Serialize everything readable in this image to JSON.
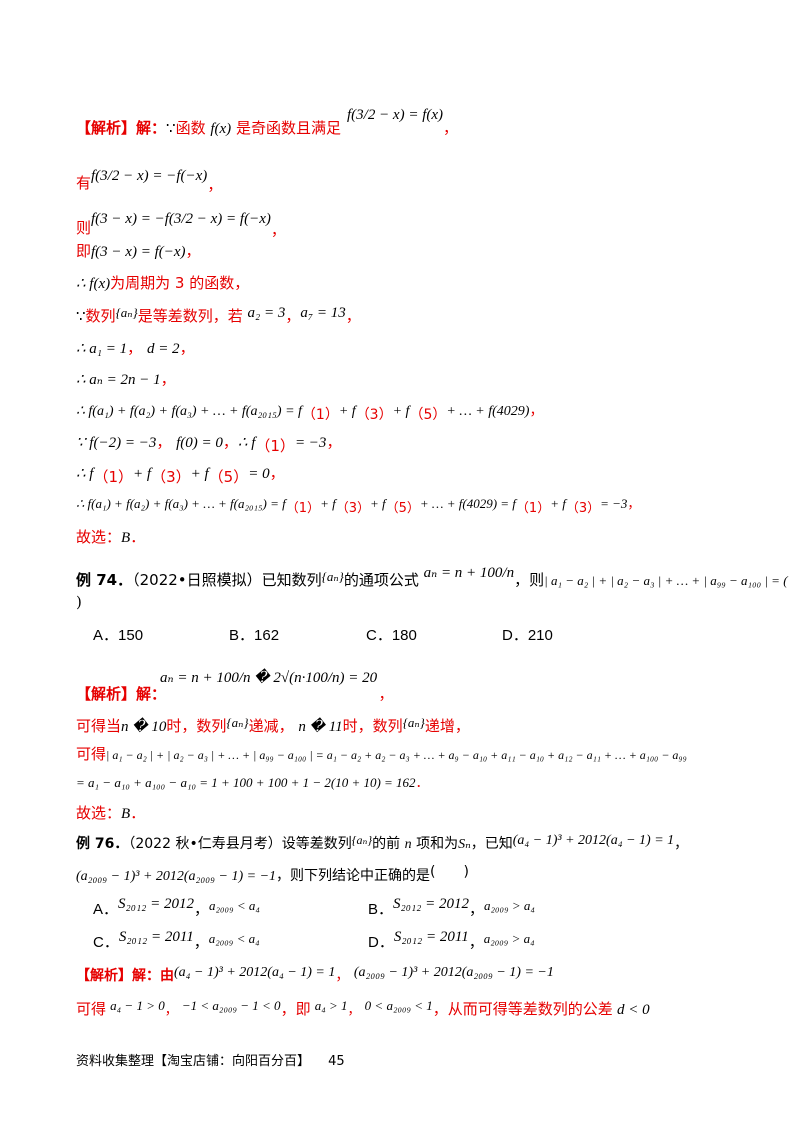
{
  "sol1": {
    "l1_label": "【解析】解：",
    "l1_because": "∵",
    "l1_func": "函数",
    "l1_fx": "f(x)",
    "l1_text": "是奇函数且满足",
    "l1_eq": "f(3/2 − x) = f(x)",
    "l1_end": "，",
    "l2_pre": "有",
    "l2_eq": "f(3/2 − x) = −f(−x)",
    "l2_end": "，",
    "l3_pre": "则",
    "l3_eq": "f(3 − x) = −f(3/2 − x) = f(−x)",
    "l3_end": "，",
    "l4_pre": "即",
    "l4_eq": "f(3 − x) = f(−x)",
    "l4_end": "，",
    "l5_eq": "∴ f(x)",
    "l5_text": "为周期为 3 的函数，",
    "l6_pre": "∵",
    "l6_text": "数列",
    "l6_an": "{aₙ}",
    "l6_text2": "是等差数列，若",
    "l6_eq1": "a₂ = 3",
    "l6_sep": "，",
    "l6_eq2": "a₇ = 13",
    "l6_end": "，",
    "l7_eq1": "∴ a₁ = 1",
    "l7_sep": "，",
    "l7_eq2": "d = 2",
    "l7_end": "，",
    "l8_eq": "∴ aₙ = 2n − 1",
    "l8_end": "，",
    "l9_eq": "∴ f(a₁) + f(a₂) + f(a₃) + … + f(a₂₀₁₅) = f",
    "l9_p1": "（1）",
    "l9_plus1": "+ f",
    "l9_p3": "（3）",
    "l9_plus2": "+ f",
    "l9_p5": "（5）",
    "l9_tail": "+ … + f(4029)",
    "l9_end": "，",
    "l10_eq1": "∵ f(−2) = −3",
    "l10_sep": "，",
    "l10_eq2": "f(0) = 0",
    "l10_sep2": "，",
    "l10_eq3": "∴ f",
    "l10_p1": "（1）",
    "l10_val": "= −3",
    "l10_end": "，",
    "l11_eq": "∴ f",
    "l11_p1": "（1）",
    "l11_plus1": "+ f",
    "l11_p3": "（3）",
    "l11_plus2": "+ f",
    "l11_p5": "（5）",
    "l11_val": "= 0",
    "l11_end": "，",
    "l12_eq": "∴ f(a₁) + f(a₂) + f(a₃) + … + f(a₂₀₁₅) = f",
    "l12_p1": "（1）",
    "l12_plus1": "+ f",
    "l12_p3": "（3）",
    "l12_plus2": "+ f",
    "l12_p5": "（5）",
    "l12_mid": "+ … + f(4029) = f",
    "l12_p1b": "（1）",
    "l12_plus3": "+ f",
    "l12_p3b": "（3）",
    "l12_val": "= −3",
    "l12_end": "，",
    "l13_text": "故选：",
    "l13_ans": "B",
    "l13_end": "．"
  },
  "ex74": {
    "label": "例 74．",
    "source": "（2022•日照模拟）已知数列",
    "an": "{aₙ}",
    "text": "的通项公式",
    "formula": "aₙ = n + 100/n",
    "text2": "，则",
    "expr": "| a₁ − a₂ | + | a₂ − a₃ | + … + | a₉₉ − a₁₀₀ | = (",
    "close": ")",
    "options": [
      "A．150",
      "B．162",
      "C．180",
      "D．210"
    ]
  },
  "sol74": {
    "formula": "aₙ = n + 100/n � 2√(n·100/n) = 20",
    "label": "【解析】解：",
    "end": "，",
    "l2_pre": "可得当",
    "l2_cond1": "n � 10",
    "l2_text1": "时，数列",
    "l2_an1": "{aₙ}",
    "l2_text2": "递减，",
    "l2_cond2": "n � 11",
    "l2_text3": "时，数列",
    "l2_an2": "{aₙ}",
    "l2_text4": "递增，",
    "l3_pre": "可得",
    "l3_eq": "| a₁ − a₂ | + | a₂ − a₃ | + … + | a₉₉ − a₁₀₀ | = a₁ − a₂ + a₂ − a₃ + … + a₉ − a₁₀ + a₁₁ − a₁₀ + a₁₂ − a₁₁ + … + a₁₀₀ − a₉₉",
    "l4_eq": "= a₁ − a₁₀ + a₁₀₀ − a₁₀ = 1 + 100 + 100 + 1 − 2(10 + 10) = 162",
    "l4_end": "．",
    "l5_text": "故选：",
    "l5_ans": "B",
    "l5_end": "．"
  },
  "ex76": {
    "label": "例 76．",
    "source": "（2022 秋•仁寿县月考）设等差数列",
    "an": "{aₙ}",
    "text": "的前",
    "n": "n",
    "text2": "项和为",
    "sn": "Sₙ",
    "text3": "，已知",
    "eq1": "(a₄ − 1)³ + 2012(a₄ − 1) = 1",
    "sep": "，",
    "eq2": "(a₂₀₀₉ − 1)³ + 2012(a₂₀₀₉ − 1) = −1",
    "text4": "，则下列结论中正确的是",
    "paren": "(　　)",
    "options": [
      {
        "letter": "A．",
        "s": "S₂₀₁₂ = 2012",
        "sep": "，",
        "rel": "a₂₀₀₉ < a₄"
      },
      {
        "letter": "B．",
        "s": "S₂₀₁₂ = 2012",
        "sep": "，",
        "rel": "a₂₀₀₉ > a₄"
      },
      {
        "letter": "C．",
        "s": "S₂₀₁₂ = 2011",
        "sep": "，",
        "rel": "a₂₀₀₉ < a₄"
      },
      {
        "letter": "D．",
        "s": "S₂₀₁₂ = 2011",
        "sep": "，",
        "rel": "a₂₀₀₉ > a₄"
      }
    ]
  },
  "sol76": {
    "label": "【解析】解：由",
    "eq1": "(a₄ − 1)³ + 2012(a₄ − 1) = 1",
    "sep": "，",
    "eq2": "(a₂₀₀₉ − 1)³ + 2012(a₂₀₀₉ − 1) = −1",
    "l2_pre": "可得",
    "l2_eq1": "a₄ − 1 > 0",
    "l2_sep1": "，",
    "l2_eq2": "−1 < a₂₀₀₉ − 1 < 0",
    "l2_text": "，即",
    "l2_eq3": "a₄ > 1",
    "l2_sep2": "，",
    "l2_eq4": "0 < a₂₀₀₉ < 1",
    "l2_text2": "，从而可得等差数列的公差",
    "l2_eq5": "d < 0"
  },
  "footer": {
    "text": "资料收集整理【淘宝店铺：向阳百分百】",
    "page": "45"
  }
}
